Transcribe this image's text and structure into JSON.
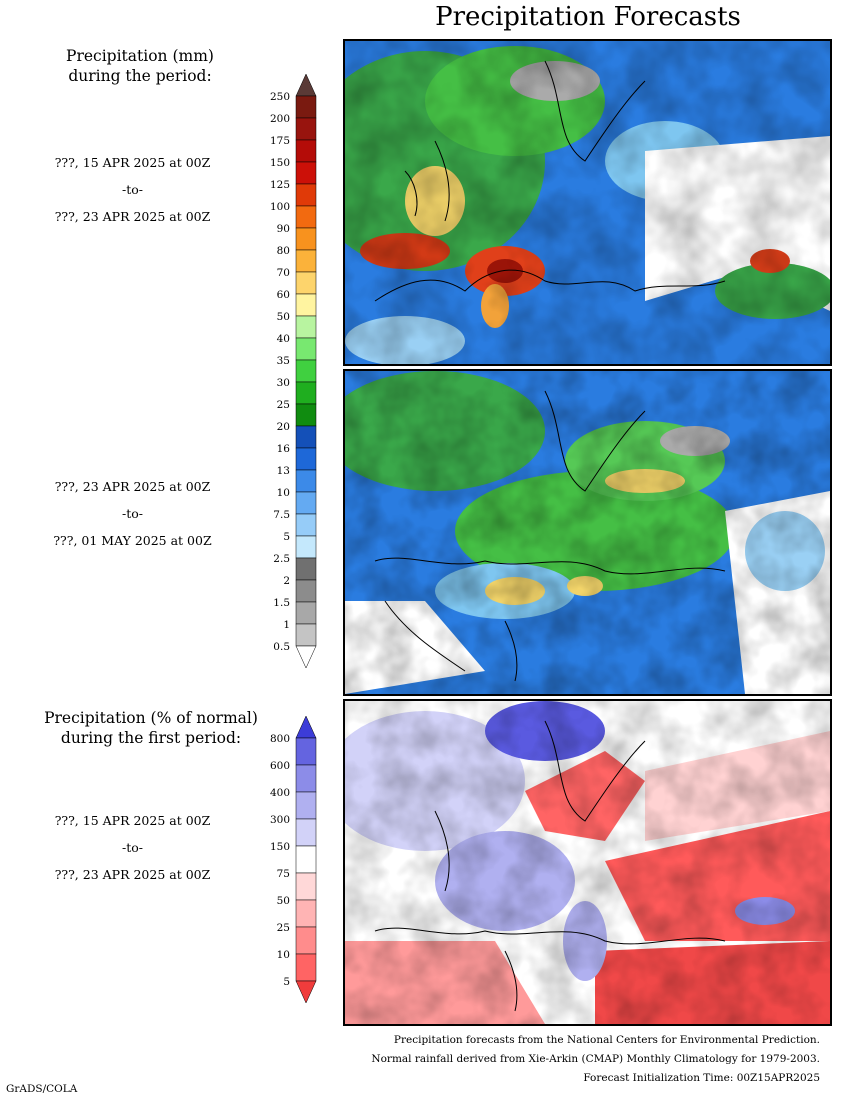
{
  "title": "Precipitation Forecasts",
  "sections": {
    "mm_heading": [
      "Precipitation (mm)",
      "during the period:"
    ],
    "pct_heading": [
      "Precipitation (% of normal)",
      "during the first period:"
    ],
    "period1": [
      "???, 15 APR 2025 at 00Z",
      "-to-",
      "???, 23 APR 2025 at 00Z"
    ],
    "period2": [
      "???, 23 APR 2025 at 00Z",
      "-to-",
      "???, 01 MAY 2025 at 00Z"
    ],
    "period3": [
      "???, 15 APR 2025 at 00Z",
      "-to-",
      "???, 23 APR 2025 at 00Z"
    ]
  },
  "mm_scale": {
    "labels": [
      "250",
      "200",
      "175",
      "150",
      "125",
      "100",
      "90",
      "80",
      "70",
      "60",
      "50",
      "40",
      "35",
      "30",
      "25",
      "20",
      "16",
      "13",
      "10",
      "7.5",
      "5",
      "2.5",
      "2",
      "1.5",
      "1",
      "0.5"
    ],
    "colors": [
      "#5a3a36",
      "#7a1a10",
      "#98140e",
      "#b40c08",
      "#cc1008",
      "#e03a08",
      "#f26a10",
      "#f8921e",
      "#fbb23a",
      "#fdd46c",
      "#fff4a0",
      "#b8f4a0",
      "#78e870",
      "#40d040",
      "#1fae1f",
      "#108c10",
      "#1450b8",
      "#1e68d8",
      "#3c8ae8",
      "#64aaf2",
      "#96ccf8",
      "#c4e8fc",
      "#707070",
      "#8c8c8c",
      "#a8a8a8",
      "#c4c4c4",
      "#ffffff"
    ]
  },
  "pct_scale": {
    "labels": [
      "800",
      "600",
      "400",
      "300",
      "150",
      "75",
      "50",
      "25",
      "10",
      "5"
    ],
    "colors": [
      "#3c3cd8",
      "#6464e0",
      "#8c8ce8",
      "#b0b0f0",
      "#d2d2f8",
      "#ffffff",
      "#ffd8d8",
      "#ffb4b4",
      "#ff8c8c",
      "#ff6464",
      "#f03c3c"
    ]
  },
  "footer": [
    "Precipitation forecasts from the National Centers for Environmental Prediction.",
    "Normal rainfall derived from Xie-Arkin (CMAP) Monthly Climatology for 1979-2003.",
    "Forecast Initialization Time: 00Z15APR2025"
  ],
  "credit": "GrADS/COLA"
}
